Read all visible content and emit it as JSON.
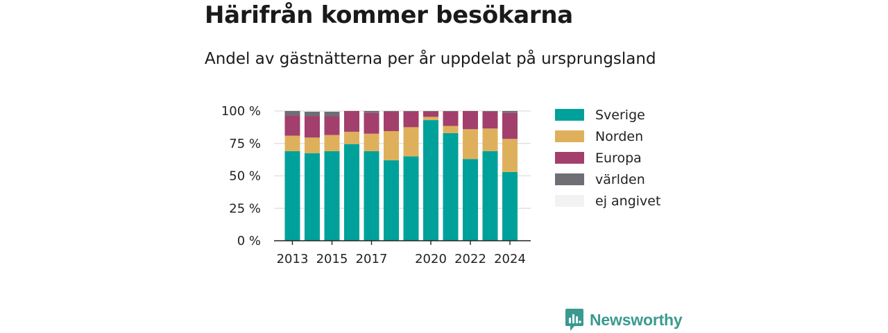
{
  "title": "Härifrån kommer besökarna",
  "subtitle": "Andel av gästnätterna per år uppdelat på ursprungsland",
  "brand": {
    "name": "Newsworthy"
  },
  "chart_data": {
    "type": "bar",
    "stacked": true,
    "x": [
      2013,
      2014,
      2015,
      2016,
      2017,
      2018,
      2019,
      2020,
      2021,
      2022,
      2023,
      2024
    ],
    "x_tick_labels": [
      "2013",
      "2015",
      "2017",
      "2020",
      "2022",
      "2024"
    ],
    "x_ticks": [
      2013,
      2015,
      2017,
      2020,
      2022,
      2024
    ],
    "y_tick_labels": [
      "0 %",
      "25 %",
      "50 %",
      "75 %",
      "100 %"
    ],
    "y_ticks": [
      0,
      25,
      50,
      75,
      100
    ],
    "ylim": [
      0,
      100
    ],
    "grid": true,
    "legend_position": "right",
    "series": [
      {
        "name": "Sverige",
        "color": "#00a19a",
        "values": [
          69,
          67.5,
          69,
          74.5,
          69,
          62,
          65,
          93,
          83,
          63,
          69,
          53
        ]
      },
      {
        "name": "Norden",
        "color": "#dfb05c",
        "values": [
          12,
          12,
          12.5,
          9.5,
          13.5,
          22.5,
          22.5,
          2.5,
          5.5,
          23,
          17.5,
          25.5
        ]
      },
      {
        "name": "Europa",
        "color": "#a33f6c",
        "values": [
          15.5,
          16.5,
          14.5,
          16,
          16,
          15,
          12,
          4,
          11,
          14,
          13,
          20
        ]
      },
      {
        "name": "världen",
        "color": "#6f6e75",
        "values": [
          3.5,
          3.5,
          3.5,
          0,
          1.5,
          0.5,
          0.5,
          0.5,
          0.5,
          0,
          0.5,
          1.5
        ]
      },
      {
        "name": "ej angivet",
        "color": "#f2f2f2",
        "values": [
          0,
          0.5,
          0.5,
          0,
          0,
          0,
          0,
          0,
          0,
          0,
          0,
          0
        ]
      }
    ]
  }
}
